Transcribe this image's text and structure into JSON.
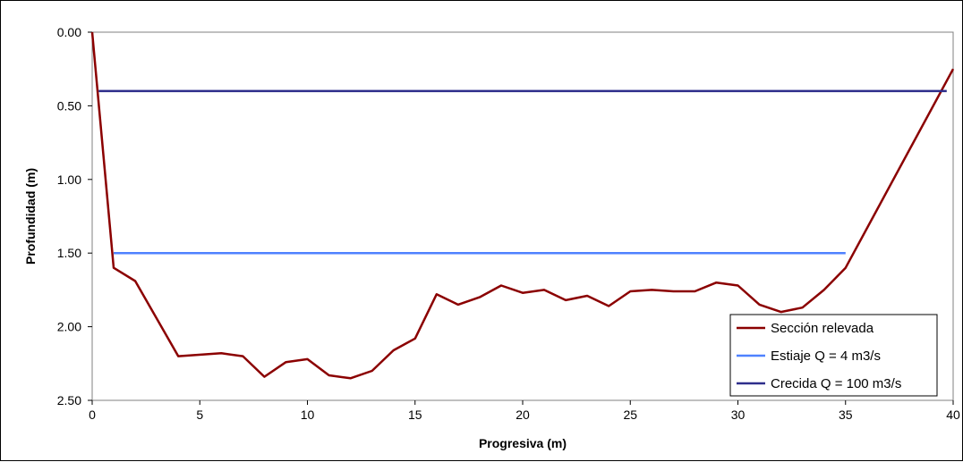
{
  "chart_data": {
    "type": "line",
    "title": "",
    "xlabel": "Progresiva (m)",
    "ylabel": "Profundidad (m)",
    "xlim": [
      0,
      40
    ],
    "ylim": [
      0,
      2.5
    ],
    "y_inverted": true,
    "xticks": [
      0,
      5,
      10,
      15,
      20,
      25,
      30,
      35,
      40
    ],
    "xtick_labels": [
      "0",
      "5",
      "10",
      "15",
      "20",
      "25",
      "30",
      "35",
      "40"
    ],
    "yticks": [
      0,
      0.5,
      1.0,
      1.5,
      2.0,
      2.5
    ],
    "ytick_labels": [
      "0.00",
      "0.50",
      "1.00",
      "1.50",
      "2.00",
      "2.50"
    ],
    "grid": false,
    "legend_position": "bottom-right",
    "series": [
      {
        "name": "Sección relevada",
        "color": "#8B0000",
        "x": [
          0,
          1,
          2,
          4,
          6,
          7,
          8,
          9,
          10,
          11,
          12,
          13,
          14,
          15,
          16,
          17,
          18,
          19,
          20,
          21,
          22,
          23,
          24,
          25,
          26,
          27,
          28,
          29,
          30,
          31,
          32,
          33,
          34,
          35,
          40
        ],
        "y": [
          0.0,
          1.6,
          1.69,
          2.2,
          2.18,
          2.2,
          2.34,
          2.24,
          2.22,
          2.33,
          2.35,
          2.3,
          2.16,
          2.08,
          1.78,
          1.85,
          1.8,
          1.72,
          1.77,
          1.75,
          1.82,
          1.79,
          1.86,
          1.76,
          1.75,
          1.76,
          1.76,
          1.7,
          1.72,
          1.85,
          1.9,
          1.87,
          1.75,
          1.6,
          0.25
        ]
      },
      {
        "name": "Estiaje Q = 4 m3/s",
        "color": "#4F81FF",
        "x": [
          1,
          35
        ],
        "y": [
          1.5,
          1.5
        ]
      },
      {
        "name": "Crecida Q = 100 m3/s",
        "color": "#2E2E8B",
        "x": [
          0.3,
          39.7
        ],
        "y": [
          0.4,
          0.4
        ]
      }
    ]
  }
}
